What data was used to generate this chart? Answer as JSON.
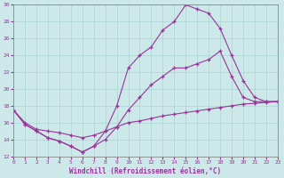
{
  "xlabel": "Windchill (Refroidissement éolien,°C)",
  "bg_color": "#cce8e8",
  "line_color": "#993399",
  "grid_color": "#aad4d4",
  "xlim": [
    0,
    23
  ],
  "ylim": [
    12,
    30
  ],
  "xticks": [
    0,
    1,
    2,
    3,
    4,
    5,
    6,
    7,
    8,
    9,
    10,
    11,
    12,
    13,
    14,
    15,
    16,
    17,
    18,
    19,
    20,
    21,
    22,
    23
  ],
  "yticks": [
    12,
    14,
    16,
    18,
    20,
    22,
    24,
    26,
    28,
    30
  ],
  "line1": {
    "x": [
      0,
      1,
      2,
      3,
      4,
      5,
      6,
      7,
      8,
      9,
      10,
      11,
      12,
      13,
      14,
      15,
      16,
      17,
      18,
      19,
      20,
      21,
      22,
      23
    ],
    "y": [
      17.5,
      16.0,
      15.2,
      15.0,
      14.8,
      14.5,
      14.2,
      14.5,
      15.0,
      15.5,
      16.0,
      16.2,
      16.5,
      16.8,
      17.0,
      17.2,
      17.4,
      17.6,
      17.8,
      18.0,
      18.2,
      18.3,
      18.4,
      18.5
    ]
  },
  "line2": {
    "x": [
      0,
      1,
      2,
      3,
      4,
      5,
      6,
      7,
      8,
      9,
      10,
      11,
      12,
      13,
      14,
      15,
      16,
      17,
      18,
      19,
      20,
      21,
      22,
      23
    ],
    "y": [
      17.5,
      15.8,
      15.0,
      14.2,
      13.8,
      13.2,
      12.5,
      13.2,
      14.0,
      15.5,
      17.5,
      19.0,
      20.5,
      21.5,
      22.5,
      22.5,
      23.0,
      23.5,
      24.5,
      21.5,
      19.0,
      18.5,
      18.5,
      18.5
    ]
  },
  "line3": {
    "x": [
      0,
      1,
      2,
      3,
      4,
      5,
      6,
      7,
      8,
      9,
      10,
      11,
      12,
      13,
      14,
      15,
      16,
      17,
      18,
      19,
      20,
      21,
      22,
      23
    ],
    "y": [
      17.5,
      15.8,
      15.0,
      14.2,
      13.8,
      13.2,
      12.5,
      13.2,
      15.0,
      18.0,
      22.5,
      24.0,
      25.0,
      27.0,
      28.0,
      30.0,
      29.5,
      29.0,
      27.2,
      24.0,
      21.0,
      19.0,
      18.5,
      18.5
    ]
  }
}
